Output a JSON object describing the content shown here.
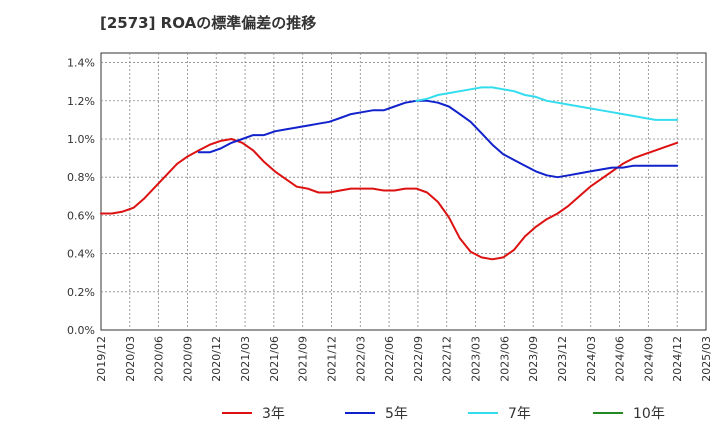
{
  "chart_data": {
    "type": "line",
    "title": "[2573]  ROAの標準偏差の推移",
    "xlabel": "",
    "ylabel": "",
    "ylim": [
      0,
      1.45
    ],
    "yticks": [
      "0.0%",
      "0.2%",
      "0.4%",
      "0.6%",
      "0.8%",
      "1.0%",
      "1.2%",
      "1.4%"
    ],
    "ytick_values": [
      0,
      0.2,
      0.4,
      0.6,
      0.8,
      1.0,
      1.2,
      1.4
    ],
    "xticks": [
      "2019/12",
      "2020/03",
      "2020/06",
      "2020/09",
      "2020/12",
      "2021/03",
      "2021/06",
      "2021/09",
      "2021/12",
      "2022/03",
      "2022/06",
      "2022/09",
      "2022/12",
      "2023/03",
      "2023/06",
      "2023/09",
      "2023/12",
      "2024/03",
      "2024/06",
      "2024/09",
      "2024/12",
      "2025/03"
    ],
    "grid": true,
    "legend_position": "bottom",
    "series": [
      {
        "name": "3年",
        "color": "#dd1111",
        "points": [
          [
            0,
            0.61
          ],
          [
            1,
            0.61
          ],
          [
            2,
            0.62
          ],
          [
            3,
            0.64
          ],
          [
            4,
            0.69
          ],
          [
            5,
            0.75
          ],
          [
            6,
            0.81
          ],
          [
            7,
            0.87
          ],
          [
            8,
            0.91
          ],
          [
            9,
            0.94
          ],
          [
            10,
            0.97
          ],
          [
            11,
            0.99
          ],
          [
            12,
            1.0
          ],
          [
            13,
            0.98
          ],
          [
            14,
            0.94
          ],
          [
            15,
            0.88
          ],
          [
            16,
            0.83
          ],
          [
            17,
            0.79
          ],
          [
            18,
            0.75
          ],
          [
            19,
            0.74
          ],
          [
            20,
            0.72
          ],
          [
            21,
            0.72
          ],
          [
            22,
            0.73
          ],
          [
            23,
            0.74
          ],
          [
            24,
            0.74
          ],
          [
            25,
            0.74
          ],
          [
            26,
            0.73
          ],
          [
            27,
            0.73
          ],
          [
            28,
            0.74
          ],
          [
            29,
            0.74
          ],
          [
            30,
            0.72
          ],
          [
            31,
            0.67
          ],
          [
            32,
            0.59
          ],
          [
            33,
            0.48
          ],
          [
            34,
            0.41
          ],
          [
            35,
            0.38
          ],
          [
            36,
            0.37
          ],
          [
            37,
            0.38
          ],
          [
            38,
            0.42
          ],
          [
            39,
            0.49
          ],
          [
            40,
            0.54
          ],
          [
            41,
            0.58
          ],
          [
            42,
            0.61
          ],
          [
            43,
            0.65
          ],
          [
            44,
            0.7
          ],
          [
            45,
            0.75
          ],
          [
            46,
            0.79
          ],
          [
            47,
            0.83
          ],
          [
            48,
            0.87
          ],
          [
            49,
            0.9
          ],
          [
            50,
            0.92
          ],
          [
            51,
            0.94
          ],
          [
            52,
            0.96
          ],
          [
            53,
            0.98
          ]
        ]
      },
      {
        "name": "5年",
        "color": "#1122cc",
        "points": [
          [
            9,
            0.93
          ],
          [
            10,
            0.93
          ],
          [
            11,
            0.95
          ],
          [
            12,
            0.98
          ],
          [
            13,
            1.0
          ],
          [
            14,
            1.02
          ],
          [
            15,
            1.02
          ],
          [
            16,
            1.04
          ],
          [
            17,
            1.05
          ],
          [
            18,
            1.06
          ],
          [
            19,
            1.07
          ],
          [
            20,
            1.08
          ],
          [
            21,
            1.09
          ],
          [
            22,
            1.11
          ],
          [
            23,
            1.13
          ],
          [
            24,
            1.14
          ],
          [
            25,
            1.15
          ],
          [
            26,
            1.15
          ],
          [
            27,
            1.17
          ],
          [
            28,
            1.19
          ],
          [
            29,
            1.2
          ],
          [
            30,
            1.2
          ],
          [
            31,
            1.19
          ],
          [
            32,
            1.17
          ],
          [
            33,
            1.13
          ],
          [
            34,
            1.09
          ],
          [
            35,
            1.03
          ],
          [
            36,
            0.97
          ],
          [
            37,
            0.92
          ],
          [
            38,
            0.89
          ],
          [
            39,
            0.86
          ],
          [
            40,
            0.83
          ],
          [
            41,
            0.81
          ],
          [
            42,
            0.8
          ],
          [
            43,
            0.81
          ],
          [
            44,
            0.82
          ],
          [
            45,
            0.83
          ],
          [
            46,
            0.84
          ],
          [
            47,
            0.85
          ],
          [
            48,
            0.85
          ],
          [
            49,
            0.86
          ],
          [
            50,
            0.86
          ],
          [
            51,
            0.86
          ],
          [
            52,
            0.86
          ],
          [
            53,
            0.86
          ]
        ]
      },
      {
        "name": "7年",
        "color": "#33ddee",
        "points": [
          [
            29,
            1.2
          ],
          [
            30,
            1.21
          ],
          [
            31,
            1.23
          ],
          [
            32,
            1.24
          ],
          [
            33,
            1.25
          ],
          [
            34,
            1.26
          ],
          [
            35,
            1.27
          ],
          [
            36,
            1.27
          ],
          [
            37,
            1.26
          ],
          [
            38,
            1.25
          ],
          [
            39,
            1.23
          ],
          [
            40,
            1.22
          ],
          [
            41,
            1.2
          ],
          [
            42,
            1.19
          ],
          [
            43,
            1.18
          ],
          [
            44,
            1.17
          ],
          [
            45,
            1.16
          ],
          [
            46,
            1.15
          ],
          [
            47,
            1.14
          ],
          [
            48,
            1.13
          ],
          [
            49,
            1.12
          ],
          [
            50,
            1.11
          ],
          [
            51,
            1.1
          ],
          [
            52,
            1.1
          ],
          [
            53,
            1.1
          ]
        ]
      },
      {
        "name": "10年",
        "color": "#228822",
        "points": []
      }
    ]
  }
}
